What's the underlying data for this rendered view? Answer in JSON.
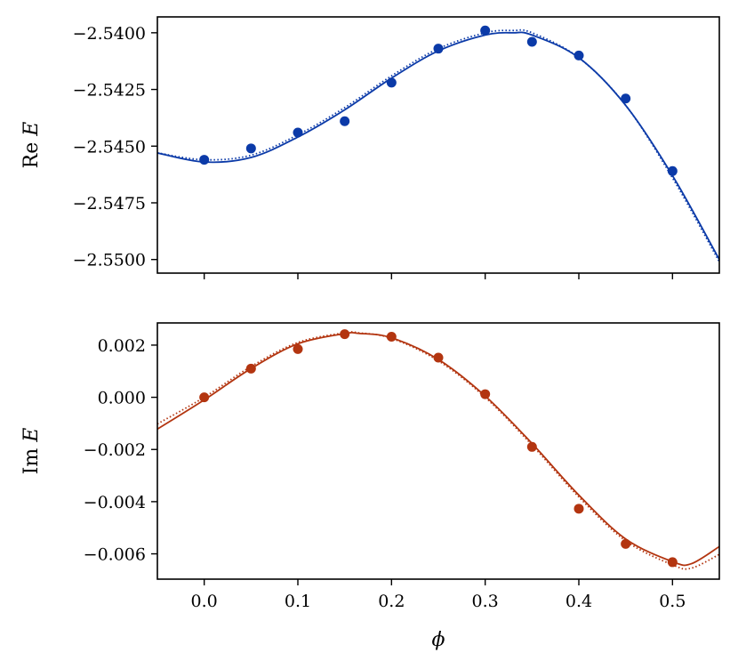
{
  "chart_data": [
    {
      "type": "scatter",
      "panel": "top",
      "ylabel_prefix": "Re",
      "ylabel_var": "E",
      "xlabel": "",
      "xlim": [
        -0.05,
        0.55
      ],
      "ylim": [
        -2.5506,
        -2.5393
      ],
      "x_ticks": [
        0.0,
        0.1,
        0.2,
        0.3,
        0.4,
        0.5
      ],
      "x_tick_labels": [
        "",
        "",
        "",
        "",
        "",
        ""
      ],
      "y_ticks": [
        -2.54,
        -2.5425,
        -2.545,
        -2.5475,
        -2.55
      ],
      "y_tick_labels": [
        "−2.5400",
        "−2.5425",
        "−2.5450",
        "−2.5475",
        "−2.5500"
      ],
      "color": "#0b3aa8",
      "points": {
        "x": [
          0.0,
          0.05,
          0.1,
          0.15,
          0.2,
          0.25,
          0.3,
          0.35,
          0.4,
          0.45,
          0.5
        ],
        "y": [
          -2.5456,
          -2.5451,
          -2.5444,
          -2.5439,
          -2.5422,
          -2.5407,
          -2.5399,
          -2.5404,
          -2.541,
          -2.5429,
          -2.5461
        ]
      },
      "fit_solid": {
        "x": [
          -0.05,
          0.0,
          0.05,
          0.1,
          0.15,
          0.2,
          0.25,
          0.3,
          0.33,
          0.35,
          0.4,
          0.45,
          0.5,
          0.55
        ],
        "y": [
          -2.5453,
          -2.5457,
          -2.5455,
          -2.5446,
          -2.5434,
          -2.542,
          -2.5408,
          -2.5401,
          -2.54,
          -2.5401,
          -2.5411,
          -2.5432,
          -2.5463,
          -2.55
        ]
      },
      "fit_dotted": {
        "x": [
          -0.05,
          0.0,
          0.05,
          0.1,
          0.15,
          0.2,
          0.25,
          0.3,
          0.33,
          0.35,
          0.4,
          0.45,
          0.5,
          0.55
        ],
        "y": [
          -2.5453,
          -2.5456,
          -2.5454,
          -2.5445,
          -2.5433,
          -2.5419,
          -2.5407,
          -2.54,
          -2.5399,
          -2.54,
          -2.5411,
          -2.5432,
          -2.5464,
          -2.5501
        ]
      }
    },
    {
      "type": "scatter",
      "panel": "bottom",
      "ylabel_prefix": "Im",
      "ylabel_var": "E",
      "xlabel": "ϕ",
      "xlim": [
        -0.05,
        0.55
      ],
      "ylim": [
        -0.00697,
        0.00285
      ],
      "x_ticks": [
        0.0,
        0.1,
        0.2,
        0.3,
        0.4,
        0.5
      ],
      "x_tick_labels": [
        "0.0",
        "0.1",
        "0.2",
        "0.3",
        "0.4",
        "0.5"
      ],
      "y_ticks": [
        0.002,
        0.0,
        -0.002,
        -0.004,
        -0.006
      ],
      "y_tick_labels": [
        "0.002",
        "0.000",
        "−0.002",
        "−0.004",
        "−0.006"
      ],
      "color": "#b33510",
      "points": {
        "x": [
          0.0,
          0.05,
          0.1,
          0.15,
          0.2,
          0.25,
          0.3,
          0.35,
          0.4,
          0.45,
          0.5
        ],
        "y": [
          0.0,
          0.0011,
          0.00185,
          0.00242,
          0.00232,
          0.00152,
          0.00012,
          -0.0019,
          -0.00427,
          -0.00562,
          -0.00632
        ]
      },
      "fit_solid": {
        "x": [
          -0.05,
          0.0,
          0.05,
          0.1,
          0.15,
          0.165,
          0.2,
          0.25,
          0.3,
          0.35,
          0.4,
          0.45,
          0.5,
          0.52,
          0.55
        ],
        "y": [
          -0.00122,
          -0.0001,
          0.0011,
          0.00205,
          0.00244,
          0.00245,
          0.00228,
          0.00145,
          5e-05,
          -0.00177,
          -0.00375,
          -0.00543,
          -0.0063,
          -0.00638,
          -0.00572
        ]
      },
      "fit_dotted": {
        "x": [
          -0.05,
          0.0,
          0.05,
          0.1,
          0.15,
          0.165,
          0.2,
          0.25,
          0.3,
          0.35,
          0.4,
          0.45,
          0.5,
          0.52,
          0.55
        ],
        "y": [
          -0.00102,
          0.0,
          0.00118,
          0.0021,
          0.00247,
          0.00247,
          0.00226,
          0.0014,
          0.0,
          -0.00183,
          -0.00382,
          -0.0055,
          -0.00642,
          -0.00655,
          -0.00602
        ]
      }
    }
  ]
}
